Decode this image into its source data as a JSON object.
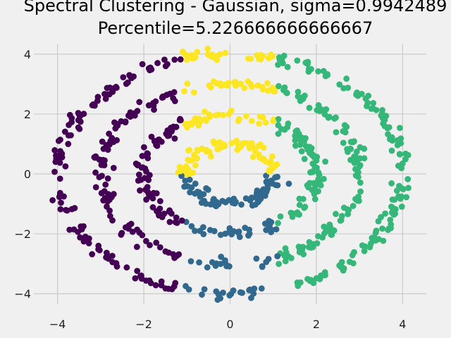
{
  "chart_data": {
    "type": "scatter",
    "title_line1": "Spectral Clustering - Gaussian, sigma=0.9942489",
    "title_line2": "Percentile=5.226666666666667",
    "xlabel": "",
    "ylabel": "",
    "xlim": [
      -4.55,
      4.55
    ],
    "ylim": [
      -4.35,
      4.35
    ],
    "x_ticks": [
      -4,
      -2,
      0,
      2,
      4
    ],
    "y_ticks": [
      -4,
      -2,
      0,
      2,
      4
    ],
    "x_tick_labels": [
      "−4",
      "−2",
      "0",
      "2",
      "4"
    ],
    "y_tick_labels": [
      "−4",
      "−2",
      "0",
      "2",
      "4"
    ],
    "grid": true,
    "background": "#f0f0f0",
    "grid_color": "#cbcbcb",
    "marker": "circle",
    "rings": [
      {
        "radius": 1.0,
        "count": 150
      },
      {
        "radius": 2.0,
        "count": 200
      },
      {
        "radius": 3.0,
        "count": 250
      },
      {
        "radius": 4.0,
        "count": 300
      }
    ],
    "ring_jitter": 0.1,
    "series": [
      {
        "color": "#fde725",
        "region": "top"
      },
      {
        "color": "#35b779",
        "region": "right"
      },
      {
        "color": "#31688e",
        "region": "bottom"
      },
      {
        "color": "#440154",
        "region": "left"
      }
    ]
  }
}
